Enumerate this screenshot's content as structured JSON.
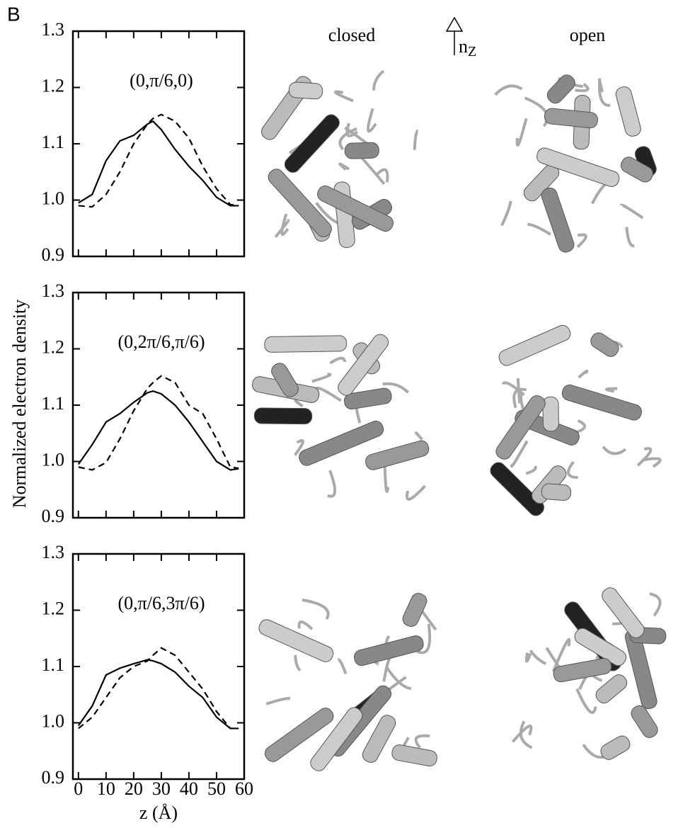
{
  "figure": {
    "panel_label": "B",
    "ylabel": "Normalized electron density",
    "columns": [
      "closed",
      "open"
    ],
    "axis_arrow": {
      "base": "n",
      "sub": "Z"
    }
  },
  "chart_data": [
    {
      "type": "line",
      "annotation": "(0,π/6,0)",
      "xlim": [
        -2,
        60
      ],
      "ylim": [
        0.9,
        1.3
      ],
      "xticks": [
        0,
        10,
        20,
        30,
        40,
        50,
        60
      ],
      "xtick_labels": false,
      "yticks": [
        0.9,
        {
          "value": 1,
          "label": "1.0"
        },
        1.1,
        1.2,
        1.3
      ],
      "x": [
        0,
        5,
        10,
        15,
        20,
        25,
        27,
        30,
        35,
        40,
        45,
        50,
        55,
        58
      ],
      "series": [
        {
          "color": "#000000",
          "style": "solid",
          "values": [
            0.995,
            1.01,
            1.07,
            1.105,
            1.115,
            1.135,
            1.14,
            1.125,
            1.09,
            1.06,
            1.035,
            1.005,
            0.99,
            0.99
          ]
        },
        {
          "color": "#000000",
          "style": "dashed",
          "values": [
            0.99,
            0.988,
            1.01,
            1.05,
            1.1,
            1.135,
            1.145,
            1.152,
            1.14,
            1.11,
            1.06,
            1.02,
            0.992,
            0.99
          ]
        }
      ]
    },
    {
      "type": "line",
      "annotation": "(0,2π/6,π/6)",
      "xlim": [
        -2,
        60
      ],
      "ylim": [
        0.9,
        1.3
      ],
      "xticks": [
        0,
        10,
        20,
        30,
        40,
        50,
        60
      ],
      "xtick_labels": false,
      "yticks": [
        0.9,
        {
          "value": 1,
          "label": "1.0"
        },
        1.1,
        1.2,
        1.3
      ],
      "x": [
        0,
        5,
        10,
        15,
        20,
        25,
        27,
        30,
        35,
        40,
        45,
        50,
        55,
        58
      ],
      "series": [
        {
          "color": "#000000",
          "style": "solid",
          "values": [
            0.995,
            1.03,
            1.07,
            1.085,
            1.105,
            1.122,
            1.125,
            1.12,
            1.1,
            1.07,
            1.035,
            1.0,
            0.985,
            0.987
          ]
        },
        {
          "color": "#000000",
          "style": "dashed",
          "values": [
            0.99,
            0.985,
            0.998,
            1.04,
            1.09,
            1.13,
            1.14,
            1.152,
            1.14,
            1.1,
            1.085,
            1.04,
            0.99,
            0.988
          ]
        }
      ]
    },
    {
      "type": "line",
      "annotation": "(0,π/6,3π/6)",
      "xlim": [
        -2,
        60
      ],
      "ylim": [
        0.9,
        1.3
      ],
      "xticks": [
        0,
        10,
        20,
        30,
        40,
        50,
        60
      ],
      "xtick_labels": true,
      "xlabel": "z (Å)",
      "yticks": [
        0.9,
        {
          "value": 1,
          "label": "1.0"
        },
        1.1,
        1.2,
        1.3
      ],
      "x": [
        0,
        5,
        10,
        15,
        20,
        25,
        27,
        30,
        35,
        40,
        45,
        50,
        55,
        58
      ],
      "series": [
        {
          "color": "#000000",
          "style": "solid",
          "values": [
            0.995,
            1.03,
            1.085,
            1.097,
            1.105,
            1.112,
            1.11,
            1.105,
            1.09,
            1.065,
            1.045,
            1.01,
            0.99,
            0.99
          ]
        },
        {
          "color": "#000000",
          "style": "dashed",
          "values": [
            0.99,
            1.01,
            1.045,
            1.08,
            1.1,
            1.11,
            1.12,
            1.133,
            1.12,
            1.09,
            1.06,
            1.02,
            0.99,
            0.99
          ]
        }
      ]
    }
  ]
}
